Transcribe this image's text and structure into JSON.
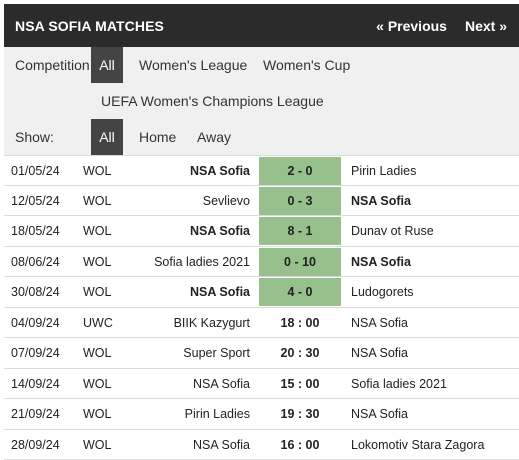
{
  "header": {
    "title": "NSA SOFIA MATCHES",
    "prev_label": "« Previous",
    "next_label": "Next »"
  },
  "filters": {
    "competition_label": "Competition:",
    "competition_options": [
      "All",
      "Women's League",
      "Women's Cup",
      "UEFA Women's Champions League"
    ],
    "competition_selected": "All",
    "show_label": "Show:",
    "show_options": [
      "All",
      "Home",
      "Away"
    ],
    "show_selected": "All"
  },
  "colors": {
    "header_bg": "#2b2b2b",
    "active_filter_bg": "#444444",
    "score_bg": "#97c08d"
  },
  "matches": [
    {
      "date": "01/05/24",
      "comp": "WOL",
      "home": "NSA Sofia",
      "score": "2 - 0",
      "away": "Pirin Ladies",
      "played": true,
      "bold_side": "home"
    },
    {
      "date": "12/05/24",
      "comp": "WOL",
      "home": "Sevlievo",
      "score": "0 - 3",
      "away": "NSA Sofia",
      "played": true,
      "bold_side": "away"
    },
    {
      "date": "18/05/24",
      "comp": "WOL",
      "home": "NSA Sofia",
      "score": "8 - 1",
      "away": "Dunav ot Ruse",
      "played": true,
      "bold_side": "home"
    },
    {
      "date": "08/06/24",
      "comp": "WOL",
      "home": "Sofia ladies 2021",
      "score": "0 - 10",
      "away": "NSA Sofia",
      "played": true,
      "bold_side": "away"
    },
    {
      "date": "30/08/24",
      "comp": "WOL",
      "home": "NSA Sofia",
      "score": "4 - 0",
      "away": "Ludogorets",
      "played": true,
      "bold_side": "home"
    },
    {
      "date": "04/09/24",
      "comp": "UWC",
      "home": "BIIK Kazygurt",
      "score": "18 : 00",
      "away": "NSA Sofia",
      "played": false,
      "bold_side": ""
    },
    {
      "date": "07/09/24",
      "comp": "WOL",
      "home": "Super Sport",
      "score": "20 : 30",
      "away": "NSA Sofia",
      "played": false,
      "bold_side": ""
    },
    {
      "date": "14/09/24",
      "comp": "WOL",
      "home": "NSA Sofia",
      "score": "15 : 00",
      "away": "Sofia ladies 2021",
      "played": false,
      "bold_side": ""
    },
    {
      "date": "21/09/24",
      "comp": "WOL",
      "home": "Pirin Ladies",
      "score": "19 : 30",
      "away": "NSA Sofia",
      "played": false,
      "bold_side": ""
    },
    {
      "date": "28/09/24",
      "comp": "WOL",
      "home": "NSA Sofia",
      "score": "16 : 00",
      "away": "Lokomotiv Stara Zagora",
      "played": false,
      "bold_side": ""
    }
  ]
}
